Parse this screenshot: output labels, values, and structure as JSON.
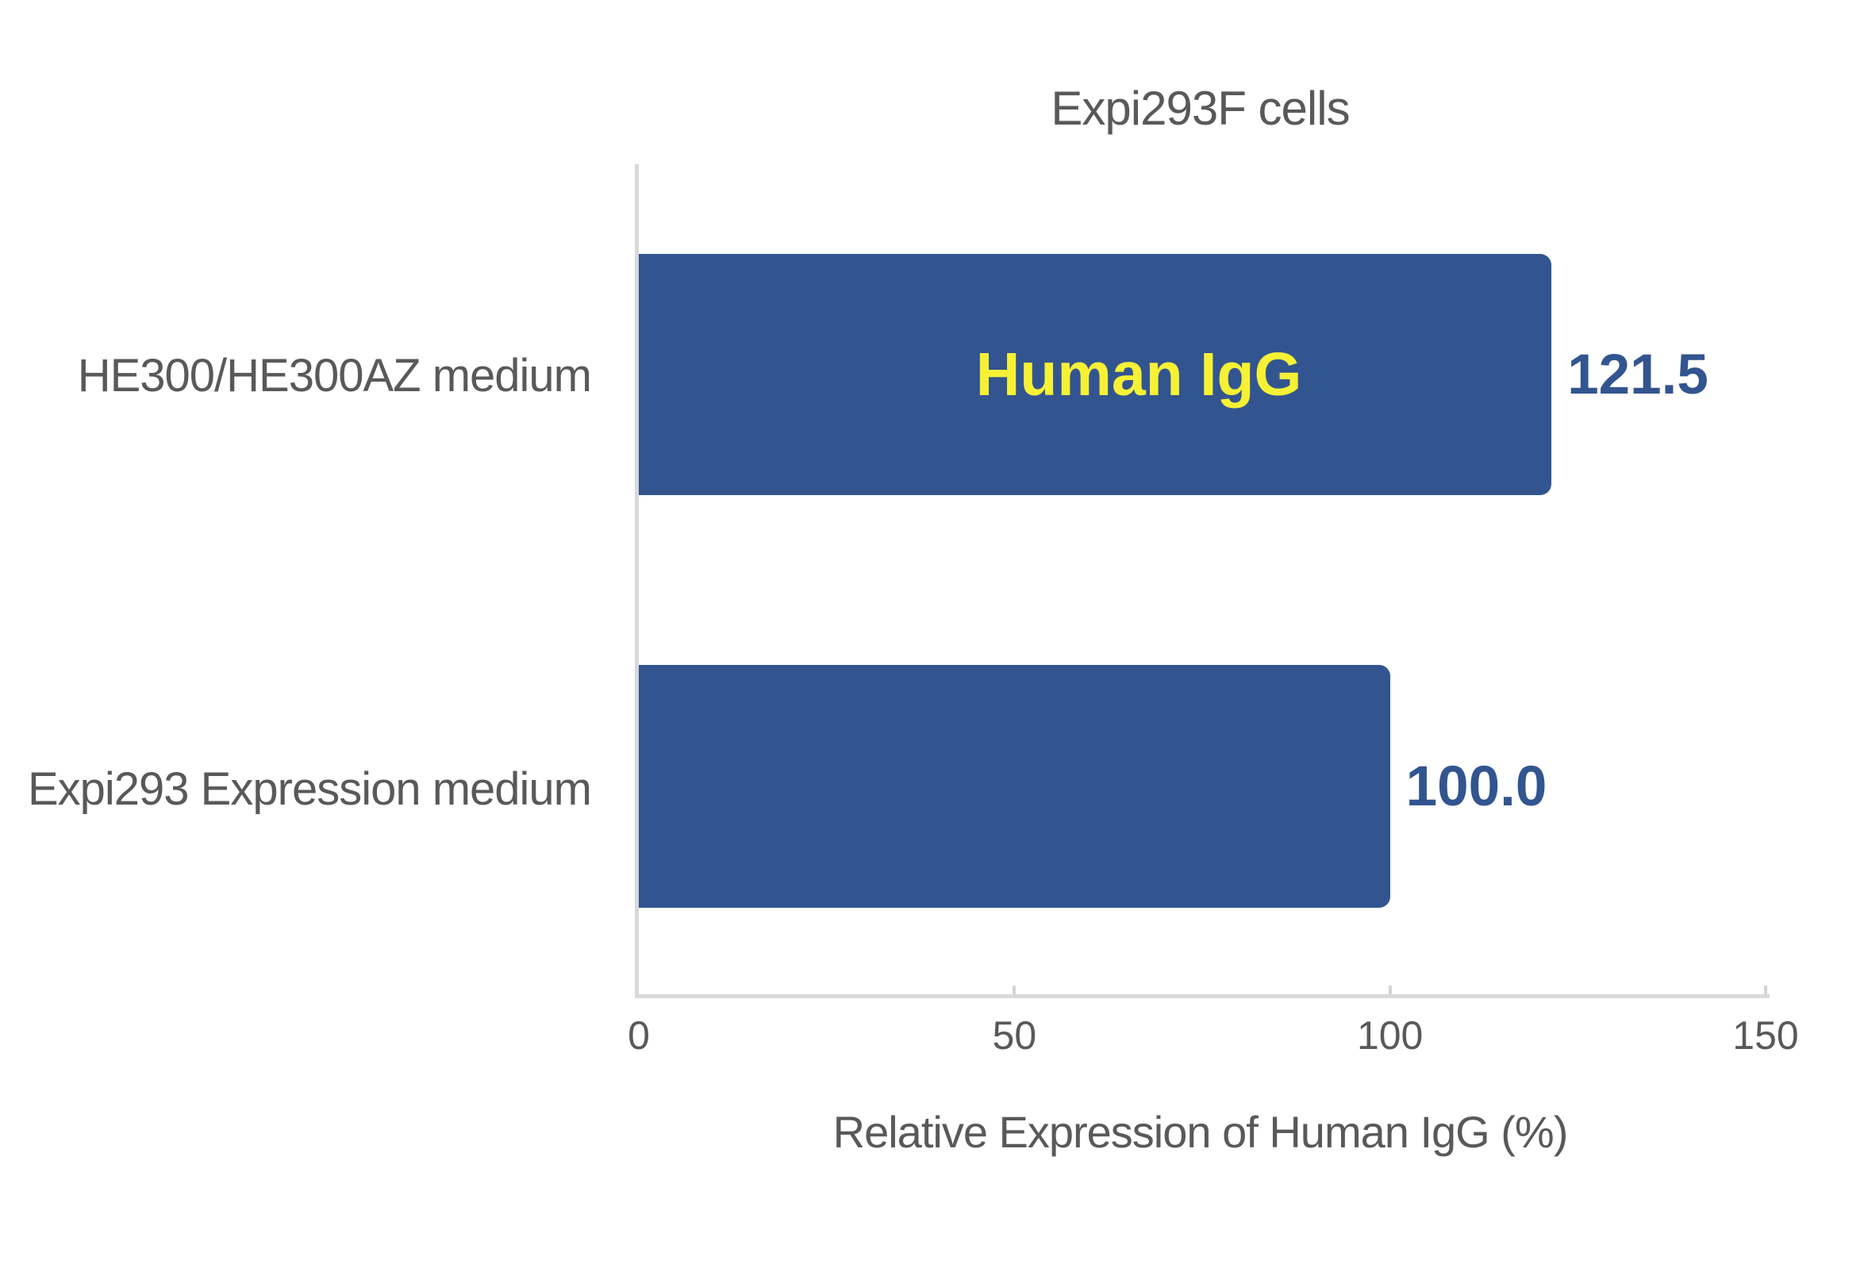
{
  "chart_data": {
    "type": "bar",
    "orientation": "horizontal",
    "title": "Expi293F cells",
    "xlabel": "Relative Expression of Human IgG (%)",
    "ylabel": "",
    "categories": [
      "HE300/HE300AZ medium",
      "Expi293 Expression medium"
    ],
    "values": [
      121.5,
      100.0
    ],
    "value_labels": [
      "121.5",
      "100.0"
    ],
    "bar_inner_labels": [
      "Human IgG",
      ""
    ],
    "xlim": [
      0,
      150
    ],
    "xticks": [
      0,
      50,
      100,
      150
    ],
    "xtick_labels": [
      "0",
      "50",
      "100",
      "150"
    ],
    "grid": "off",
    "legend": "none",
    "colors": {
      "bar": "#325590",
      "value_label": "#325590",
      "bar_inner_label": "#F6F135",
      "axis_line": "#D9D9D9",
      "tick_mark": "#D5D5D5",
      "text": "#595959"
    }
  }
}
